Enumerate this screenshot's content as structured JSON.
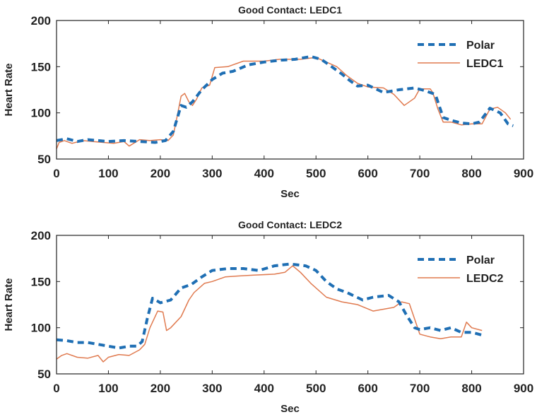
{
  "chart_data": [
    {
      "type": "line",
      "title": "Good Contact: LEDC1",
      "xlabel": "Sec",
      "ylabel": "Heart Rate",
      "xlim": [
        0,
        900
      ],
      "ylim": [
        50,
        200
      ],
      "xticks": [
        0,
        100,
        200,
        300,
        400,
        500,
        600,
        700,
        800,
        900
      ],
      "yticks": [
        50,
        100,
        150,
        200
      ],
      "legend_position": "top-right",
      "series": [
        {
          "name": "Polar",
          "color": "#1f6fb4",
          "style": "dashed",
          "x": [
            0,
            20,
            40,
            60,
            80,
            100,
            130,
            160,
            190,
            210,
            225,
            240,
            250,
            262,
            280,
            300,
            320,
            340,
            370,
            400,
            430,
            460,
            490,
            510,
            530,
            550,
            565,
            580,
            600,
            630,
            660,
            690,
            710,
            730,
            745,
            760,
            780,
            800,
            815,
            835,
            855,
            870,
            880
          ],
          "y": [
            70,
            72,
            69,
            71,
            70,
            69,
            70,
            69,
            68,
            70,
            80,
            108,
            106,
            112,
            125,
            136,
            143,
            145,
            152,
            155,
            157,
            158,
            161,
            158,
            150,
            142,
            135,
            129,
            130,
            122,
            125,
            127,
            124,
            120,
            95,
            92,
            89,
            88,
            90,
            105,
            100,
            88,
            86
          ]
        },
        {
          "name": "LEDC1",
          "color": "#e07a4f",
          "style": "solid",
          "x": [
            0,
            5,
            15,
            30,
            50,
            70,
            90,
            110,
            130,
            140,
            160,
            180,
            200,
            215,
            225,
            232,
            240,
            247,
            255,
            262,
            270,
            280,
            295,
            305,
            330,
            360,
            400,
            430,
            470,
            500,
            520,
            540,
            560,
            580,
            600,
            630,
            650,
            670,
            690,
            700,
            720,
            725,
            735,
            745,
            760,
            780,
            800,
            820,
            835,
            850,
            865,
            875
          ],
          "y": [
            61,
            68,
            70,
            67,
            70,
            69,
            68,
            67,
            69,
            64,
            71,
            70,
            71,
            70,
            76,
            95,
            118,
            121,
            112,
            108,
            115,
            127,
            130,
            149,
            150,
            156,
            156,
            158,
            158,
            160,
            155,
            150,
            140,
            132,
            128,
            127,
            120,
            108,
            116,
            126,
            126,
            122,
            104,
            90,
            90,
            87,
            88,
            88,
            104,
            106,
            100,
            93
          ]
        }
      ]
    },
    {
      "type": "line",
      "title": "Good Contact: LEDC2",
      "xlabel": "Sec",
      "ylabel": "Heart Rate",
      "xlim": [
        0,
        900
      ],
      "ylim": [
        50,
        200
      ],
      "xticks": [
        0,
        100,
        200,
        300,
        400,
        500,
        600,
        700,
        800,
        900
      ],
      "yticks": [
        50,
        100,
        150,
        200
      ],
      "legend_position": "top-right",
      "series": [
        {
          "name": "Polar",
          "color": "#1f6fb4",
          "style": "dashed",
          "x": [
            0,
            20,
            40,
            60,
            80,
            100,
            120,
            140,
            155,
            165,
            175,
            185,
            200,
            220,
            240,
            260,
            280,
            300,
            330,
            360,
            390,
            420,
            450,
            480,
            500,
            520,
            540,
            560,
            590,
            610,
            640,
            660,
            675,
            690,
            700,
            720,
            740,
            760,
            780,
            800,
            820
          ],
          "y": [
            87,
            86,
            84,
            84,
            82,
            80,
            78,
            80,
            80,
            85,
            110,
            132,
            127,
            130,
            143,
            147,
            155,
            162,
            164,
            164,
            162,
            167,
            169,
            167,
            162,
            150,
            142,
            138,
            130,
            133,
            135,
            128,
            113,
            100,
            98,
            100,
            97,
            100,
            95,
            95,
            92
          ]
        },
        {
          "name": "LEDC2",
          "color": "#e07a4f",
          "style": "solid",
          "x": [
            0,
            10,
            20,
            40,
            60,
            80,
            90,
            100,
            120,
            140,
            160,
            170,
            180,
            195,
            205,
            212,
            220,
            240,
            255,
            265,
            285,
            300,
            325,
            350,
            380,
            420,
            440,
            455,
            470,
            490,
            520,
            550,
            580,
            610,
            630,
            650,
            665,
            680,
            700,
            720,
            740,
            760,
            780,
            790,
            800,
            820
          ],
          "y": [
            66,
            70,
            72,
            68,
            67,
            70,
            63,
            68,
            71,
            70,
            76,
            82,
            100,
            118,
            117,
            97,
            100,
            112,
            130,
            138,
            148,
            150,
            155,
            156,
            157,
            158,
            160,
            167,
            160,
            148,
            133,
            128,
            125,
            118,
            120,
            122,
            128,
            126,
            93,
            90,
            88,
            90,
            90,
            106,
            100,
            97
          ]
        }
      ]
    }
  ]
}
